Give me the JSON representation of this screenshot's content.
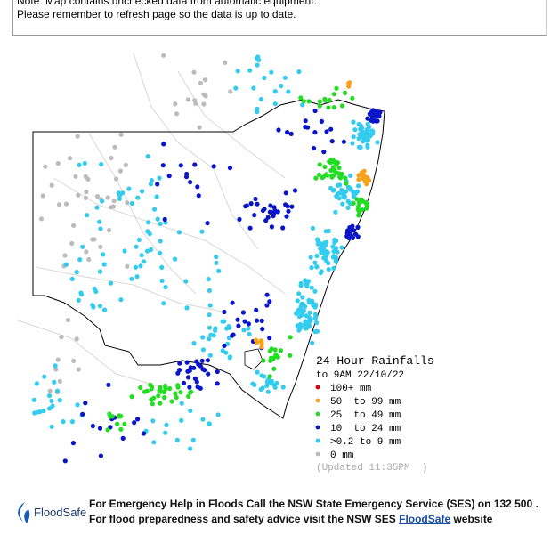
{
  "header": {
    "note": "Note: Map contains unchecked data from automatic equipment.",
    "refresh": "Please remember to refresh page so the data is up to date."
  },
  "legend": {
    "title": "24 Hour Rainfalls",
    "subtitle": "to 9AM 22/10/22",
    "items": [
      {
        "label": "100+ mm",
        "color": "#e00000"
      },
      {
        "label": "50  to 99 mm",
        "color": "#f7a21b"
      },
      {
        "label": "25  to 49 mm",
        "color": "#22dd22"
      },
      {
        "label": "10  to 24 mm",
        "color": "#0a14c8"
      },
      {
        "label": ">0.2 to 9 mm",
        "color": "#33ccee"
      },
      {
        "label": "0 mm",
        "color": "#bbbbbb"
      }
    ],
    "updated": "(Updated 11:35PM  )"
  },
  "footer": {
    "logo": "FloodSafe",
    "line1": "For Emergency Help in Floods Call the NSW State Emergency Service (SES) on 132 500 .",
    "line2_start": "For flood preparedness and safety advice visit the NSW SES",
    "line2_link": "FloodSafe",
    "line2_end": "website"
  }
}
